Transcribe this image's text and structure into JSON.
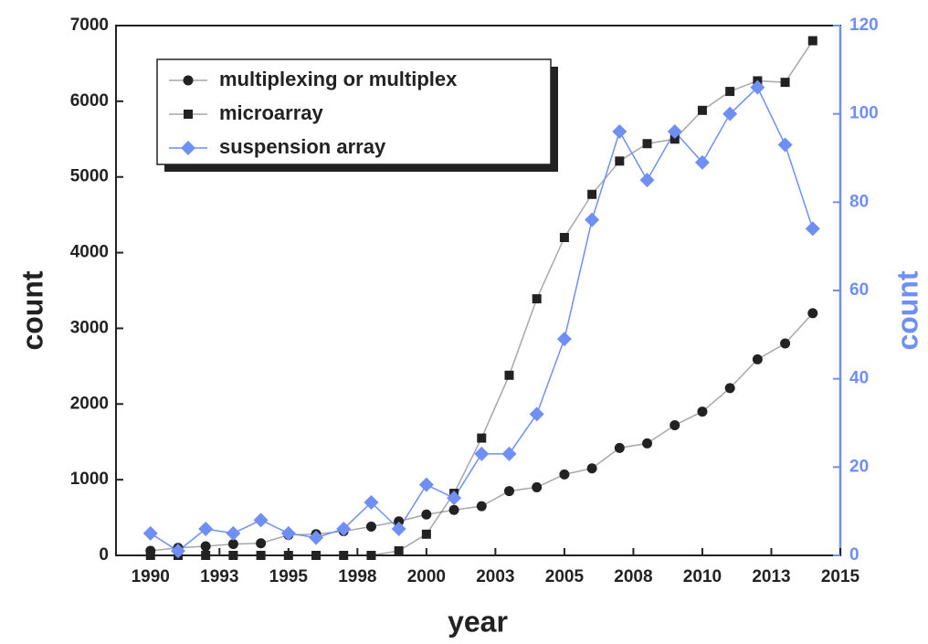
{
  "chart_data": {
    "type": "line",
    "x_label": "year",
    "y_label": "count",
    "y2_label": "count",
    "x": [
      1990,
      1991,
      1992,
      1993,
      1994,
      1995,
      1996,
      1997,
      1998,
      1999,
      2000,
      2001,
      2002,
      2003,
      2004,
      2005,
      2006,
      2007,
      2008,
      2009,
      2010,
      2011,
      2012,
      2013,
      2014
    ],
    "series": [
      {
        "name": "multiplexing or multiplex",
        "color": "#222222",
        "marker": "circle",
        "values": [
          60,
          100,
          120,
          150,
          160,
          270,
          280,
          320,
          380,
          450,
          540,
          600,
          650,
          850,
          900,
          1070,
          1150,
          1420,
          1480,
          1720,
          1900,
          2210,
          2590,
          2800,
          3200
        ]
      },
      {
        "name": "microarray",
        "color": "#222222",
        "marker": "square",
        "values": [
          0,
          0,
          0,
          0,
          0,
          0,
          0,
          0,
          0,
          60,
          280,
          820,
          1550,
          2380,
          3390,
          4200,
          4770,
          5210,
          5440,
          5500,
          5880,
          6130,
          6270,
          6250,
          6800
        ]
      },
      {
        "name": "suspension array",
        "color": "#6f8ff5",
        "marker": "diamond",
        "axis": "y2",
        "values": [
          5,
          1,
          6,
          5,
          8,
          5,
          4,
          6,
          12,
          6,
          16,
          13,
          23,
          23,
          32,
          49,
          76,
          96,
          85,
          96,
          89,
          100,
          106,
          93,
          74
        ]
      }
    ],
    "xlim": [
      1988.75,
      2015
    ],
    "xticks": [
      1990,
      {
        "value": 1992.5,
        "label": "1993"
      },
      1995,
      {
        "value": 1997.5,
        "label": "1998"
      },
      2000,
      {
        "value": 2002.5,
        "label": "2003"
      },
      2005,
      {
        "value": 2007.5,
        "label": "2008"
      },
      2010,
      {
        "value": 2012.5,
        "label": "2013"
      },
      2015
    ],
    "ylim": [
      0,
      7000
    ],
    "yticks": [
      0,
      1000,
      2000,
      3000,
      4000,
      5000,
      6000,
      7000
    ],
    "y2lim": [
      0,
      120
    ],
    "y2ticks": [
      0,
      20,
      40,
      60,
      80,
      100,
      120
    ],
    "y2_color": "#6f8ff5",
    "legend": "upper left"
  }
}
